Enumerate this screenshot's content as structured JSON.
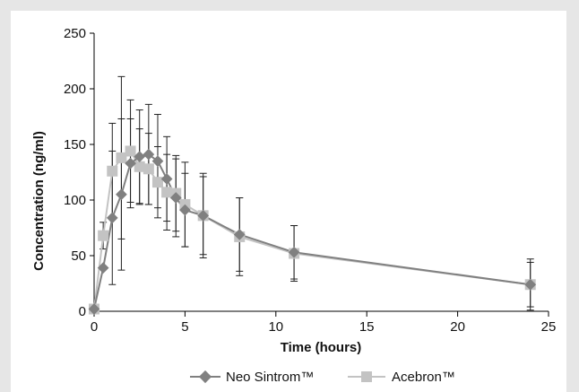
{
  "chart_data": {
    "type": "line",
    "title": "",
    "xlabel": "Time (hours)",
    "ylabel": "Concentration (ng/ml)",
    "xlim": [
      0,
      25
    ],
    "ylim": [
      0,
      250
    ],
    "xticks": [
      0,
      5,
      10,
      15,
      20,
      25
    ],
    "yticks": [
      0,
      50,
      100,
      150,
      200,
      250
    ],
    "grid": false,
    "legend_position": "bottom",
    "series": [
      {
        "name": "Neo Sintrom™",
        "marker": "diamond",
        "color": "#808080",
        "x": [
          0,
          0.5,
          1,
          1.5,
          2,
          2.5,
          3,
          3.5,
          4,
          4.5,
          5,
          6,
          8,
          11,
          24
        ],
        "y": [
          2,
          39,
          84,
          105,
          133,
          139,
          141,
          135,
          119,
          102,
          91,
          86,
          69,
          53,
          24
        ],
        "error": [
          0,
          0,
          60,
          68,
          40,
          42,
          45,
          42,
          38,
          35,
          33,
          35,
          33,
          24,
          20
        ]
      },
      {
        "name": "Acebron™",
        "marker": "square",
        "color": "#c3c3c3",
        "x": [
          0,
          0.5,
          1,
          1.5,
          2,
          2.5,
          3,
          3.5,
          4,
          4.5,
          5,
          6,
          8,
          11,
          24
        ],
        "y": [
          2,
          68,
          126,
          138,
          144,
          130,
          128,
          116,
          107,
          106,
          96,
          86,
          67,
          52,
          24
        ],
        "error": [
          0,
          12,
          43,
          73,
          46,
          34,
          32,
          32,
          34,
          34,
          38,
          38,
          35,
          25,
          23
        ]
      }
    ]
  }
}
